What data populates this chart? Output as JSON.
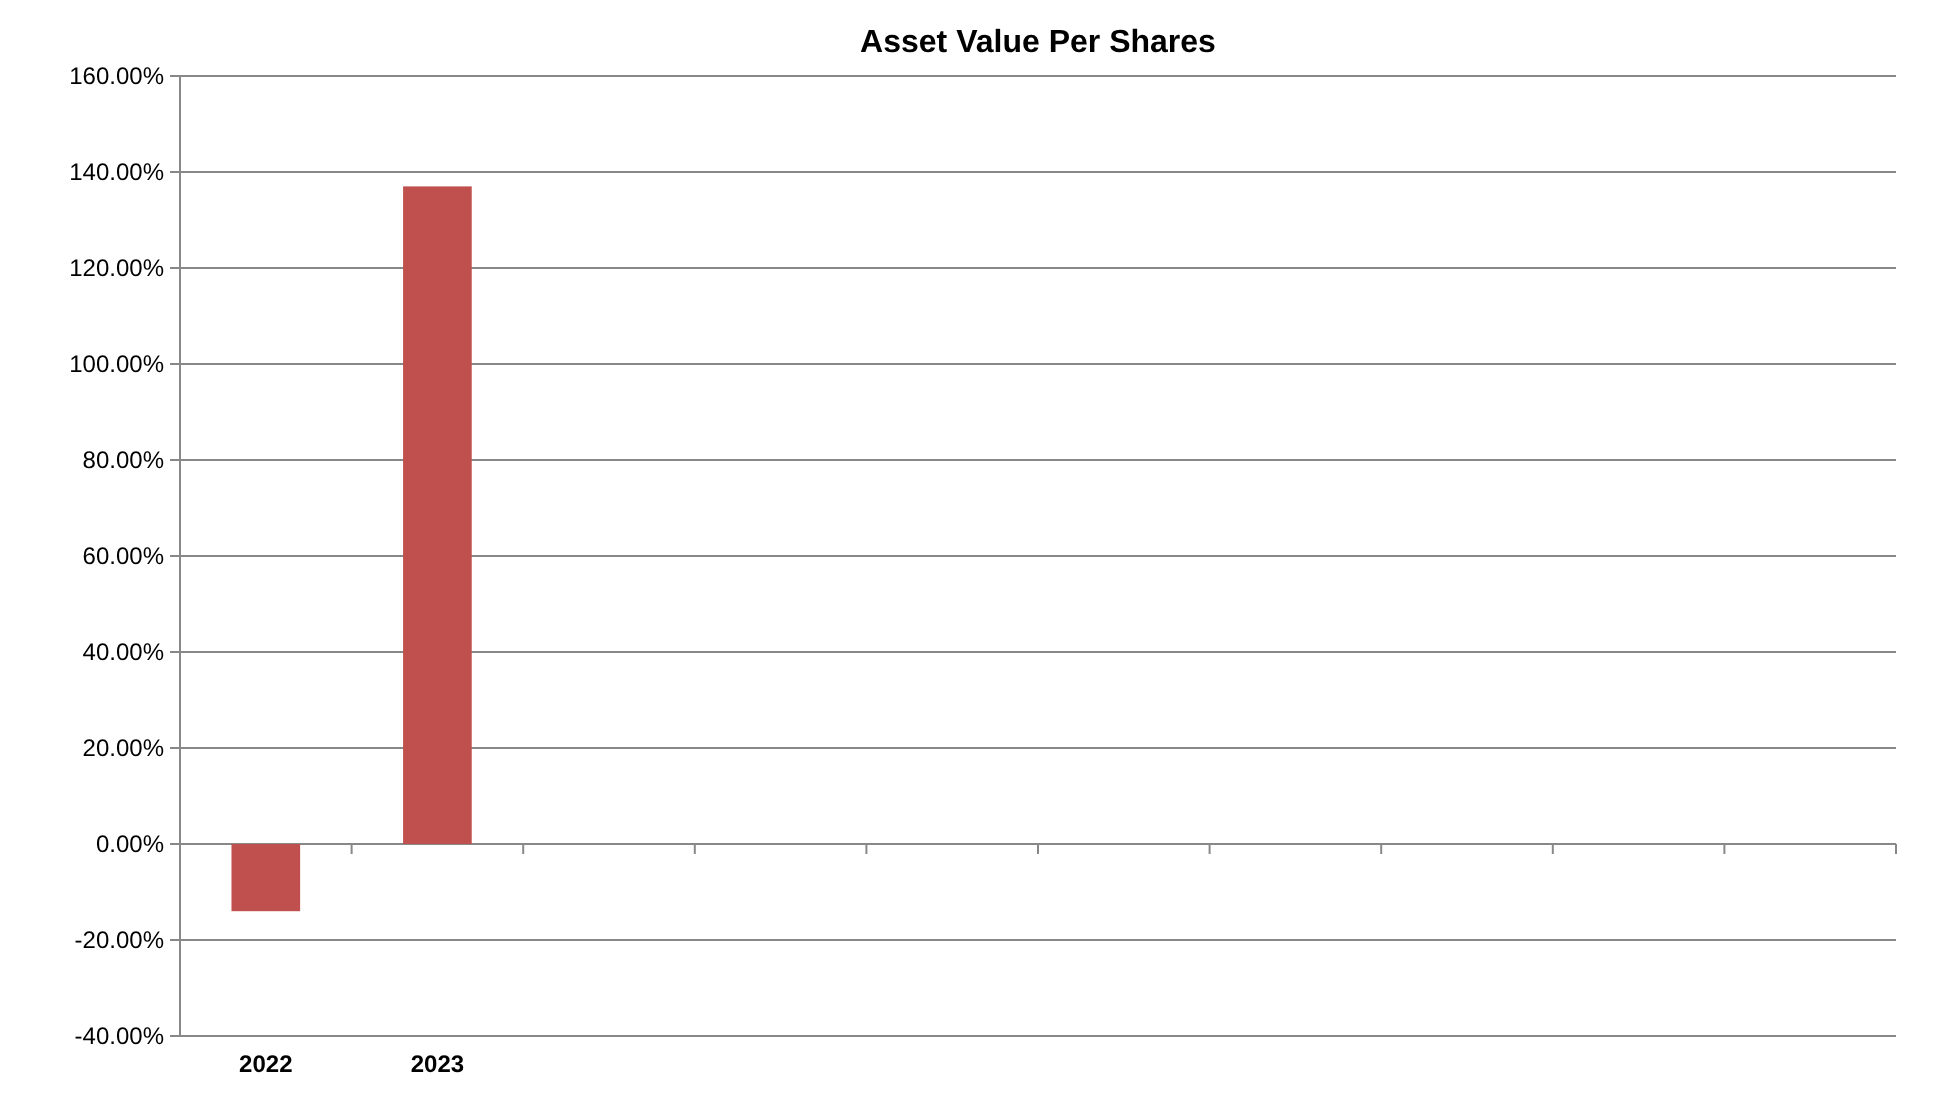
{
  "chart_data": {
    "type": "bar",
    "title": "Asset Value Per Shares",
    "categories": [
      "2022",
      "2023",
      null,
      null,
      null,
      null,
      null,
      null,
      null,
      null
    ],
    "values": [
      -14,
      137,
      null,
      null,
      null,
      null,
      null,
      null,
      null,
      null
    ],
    "color": "#c0504d",
    "ylim": [
      -40,
      160
    ],
    "yticks": [
      {
        "value": -40,
        "label": "-40.00%"
      },
      {
        "value": -20,
        "label": "-20.00%"
      },
      {
        "value": 0,
        "label": "0.00%"
      },
      {
        "value": 20,
        "label": "20.00%"
      },
      {
        "value": 40,
        "label": "40.00%"
      },
      {
        "value": 60,
        "label": "60.00%"
      },
      {
        "value": 80,
        "label": "80.00%"
      },
      {
        "value": 100,
        "label": "100.00%"
      },
      {
        "value": 120,
        "label": "120.00%"
      },
      {
        "value": 140,
        "label": "140.00%"
      },
      {
        "value": 160,
        "label": "160.00%"
      }
    ],
    "grid": "y"
  }
}
